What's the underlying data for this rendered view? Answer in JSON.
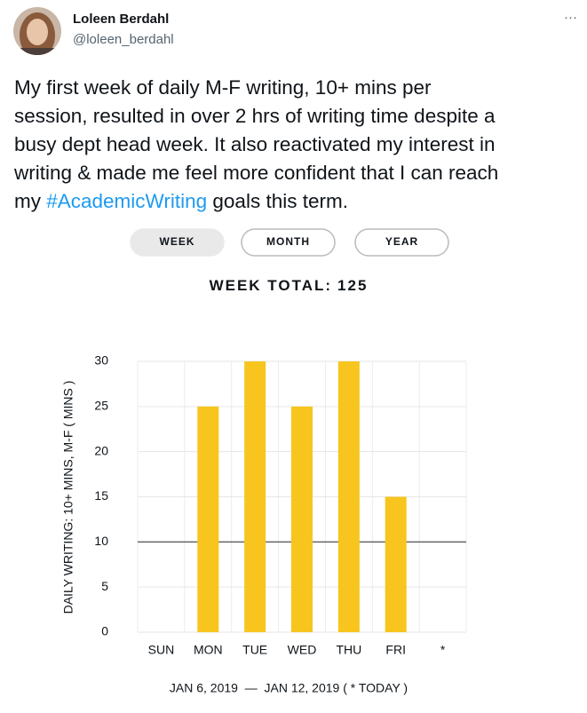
{
  "author": {
    "name": "Loleen Berdahl",
    "handle": "@loleen_berdahl"
  },
  "menu": "···",
  "tweet": {
    "lines": [
      "My first week of daily M-F writing, 10+ mins per",
      "session, resulted in over 2 hrs of writing time despite a",
      "busy dept head week. It also reactivated my interest in",
      "writing & made me feel more confident that I can reach"
    ],
    "last_line": [
      "my ",
      "#AcademicWriting",
      " goals this term."
    ]
  },
  "tabs": [
    "WEEK",
    "MONTH",
    "YEAR"
  ],
  "chart_data": {
    "type": "bar",
    "title": "WEEK TOTAL:",
    "total": 125,
    "y_label": "DAILY WRITING: 10+ MINS, M-F ( MINS )",
    "x_note": "JAN 6, 2019  —  JAN 12, 2019 ( * TODAY )",
    "categories": [
      "SUN",
      "MON",
      "TUE",
      "WED",
      "THU",
      "FRI",
      "*"
    ],
    "values": [
      null,
      25,
      30,
      25,
      30,
      15,
      null
    ],
    "color": "#f7c51e",
    "ylim": [
      0,
      30
    ],
    "yticks": [
      0,
      5,
      10,
      15,
      20,
      25,
      30
    ],
    "reference_line": 10,
    "grid": true
  }
}
